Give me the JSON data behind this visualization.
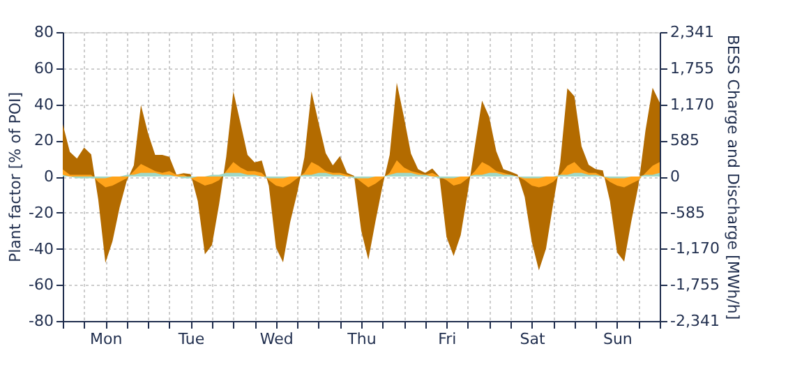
{
  "chart_data": {
    "type": "area",
    "ylabel": "Plant factor [% of POI]",
    "y2label": "BESS Charge and Discharge [MWh/h]",
    "categories": [
      null,
      null,
      null,
      null,
      null,
      null,
      "Mon",
      null,
      null,
      null,
      null,
      null,
      null,
      null,
      null,
      null,
      null,
      null,
      "Tue",
      null,
      null,
      null,
      null,
      null,
      null,
      null,
      null,
      null,
      null,
      null,
      "Wed",
      null,
      null,
      null,
      null,
      null,
      null,
      null,
      null,
      null,
      null,
      null,
      "Thu",
      null,
      null,
      null,
      null,
      null,
      null,
      null,
      null,
      null,
      null,
      null,
      "Fri",
      null,
      null,
      null,
      null,
      null,
      null,
      null,
      null,
      null,
      null,
      null,
      "Sat",
      null,
      null,
      null,
      null,
      null,
      null,
      null,
      null,
      null,
      null,
      null,
      "Sun",
      null,
      null,
      null,
      null,
      null,
      null
    ],
    "ylim": [
      -80,
      80
    ],
    "yticks": [
      -80,
      -60,
      -40,
      -20,
      0,
      20,
      40,
      60,
      80
    ],
    "y2lim": [
      -2341,
      2341
    ],
    "y2ticks": [
      {
        "value": -2341,
        "label": "-2,341"
      },
      {
        "value": -1755,
        "label": "-1,755"
      },
      {
        "value": -1170,
        "label": "-1,170"
      },
      -585,
      0,
      585,
      {
        "value": 1170,
        "label": "1,170"
      },
      {
        "value": 1755,
        "label": "1,755"
      },
      {
        "value": 2341,
        "label": "2,341"
      }
    ],
    "grid": true,
    "series": [
      {
        "color": "#b36b00",
        "axis": "y2",
        "values": [
          850,
          400,
          290,
          470,
          360,
          -380,
          -1400,
          -1050,
          -500,
          -70,
          180,
          1160,
          700,
          350,
          350,
          320,
          30,
          55,
          40,
          -400,
          -1260,
          -1110,
          -450,
          320,
          1380,
          870,
          350,
          230,
          260,
          -150,
          -1150,
          -1390,
          -740,
          -260,
          310,
          1380,
          870,
          380,
          180,
          330,
          60,
          10,
          -880,
          -1350,
          -730,
          -150,
          350,
          1520,
          970,
          370,
          120,
          60,
          130,
          0,
          -980,
          -1290,
          -950,
          -250,
          500,
          1230,
          970,
          410,
          120,
          80,
          30,
          -330,
          -1060,
          -1520,
          -1170,
          -450,
          230,
          1430,
          1300,
          490,
          190,
          120,
          100,
          -400,
          -1230,
          -1380,
          -730,
          -150,
          750,
          1440,
          1200
        ]
      },
      {
        "color": "#ffa31a",
        "values": [
          4,
          1,
          1,
          1,
          1,
          -3,
          -6,
          -5,
          -3,
          -1,
          3,
          7,
          5,
          3,
          2,
          3,
          1,
          1,
          -1,
          -3,
          -5,
          -4,
          -2,
          3,
          8,
          5,
          3,
          3,
          2,
          -2,
          -5,
          -6,
          -4,
          -1,
          2,
          8,
          6,
          3,
          2,
          2,
          1,
          0,
          -3,
          -6,
          -4,
          -1,
          2,
          9,
          5,
          3,
          2,
          1,
          2,
          0,
          -2,
          -5,
          -4,
          -1,
          3,
          8,
          6,
          3,
          2,
          1,
          0,
          -2,
          -5,
          -6,
          -5,
          -3,
          1,
          6,
          8,
          4,
          2,
          2,
          0,
          -3,
          -5,
          -6,
          -4,
          -2,
          2,
          6,
          8
        ]
      },
      {
        "color": "#9fd8c6",
        "values": [
          1,
          0,
          -1,
          -1,
          -1,
          -1,
          -1,
          0,
          0,
          1,
          1,
          2,
          2,
          2,
          1,
          1,
          0,
          -1,
          -1,
          0,
          0,
          1,
          1,
          2,
          2,
          2,
          1,
          1,
          0,
          -1,
          -1,
          -1,
          0,
          0,
          1,
          1,
          2,
          2,
          1,
          1,
          0,
          -1,
          -1,
          -1,
          0,
          0,
          1,
          2,
          2,
          2,
          1,
          1,
          0,
          -1,
          -1,
          -1,
          0,
          0,
          1,
          1,
          2,
          2,
          1,
          1,
          0,
          -1,
          -1,
          -1,
          0,
          0,
          1,
          1,
          2,
          2,
          1,
          1,
          0,
          -1,
          -1,
          -1,
          0,
          0,
          1,
          1,
          2
        ]
      }
    ]
  }
}
